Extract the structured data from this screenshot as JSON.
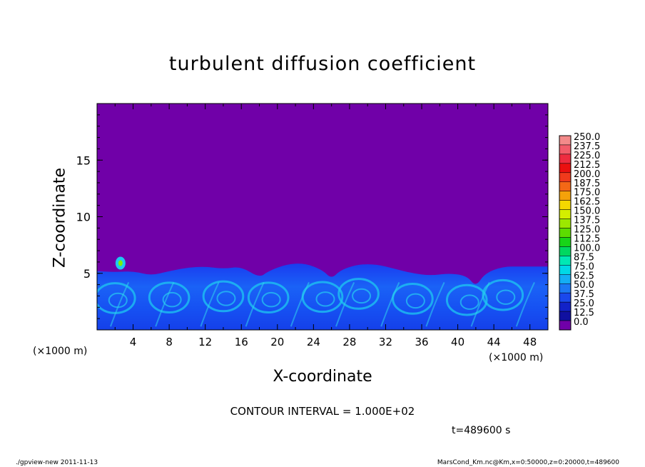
{
  "chart_data": {
    "type": "heatmap",
    "title": "turbulent diffusion coefficient",
    "xlabel": "X-coordinate",
    "ylabel": "Z-coordinate",
    "x_unit": "(×1000 m)",
    "y_unit": "(×1000 m)",
    "xlim": [
      0,
      50
    ],
    "ylim": [
      0,
      20
    ],
    "x_ticks": [
      "4",
      "8",
      "12",
      "16",
      "20",
      "24",
      "28",
      "32",
      "36",
      "40",
      "44",
      "48"
    ],
    "y_ticks": [
      "5",
      "10",
      "15"
    ],
    "colorbar": {
      "labels": [
        "250.0",
        "237.5",
        "225.0",
        "212.5",
        "200.0",
        "187.5",
        "175.0",
        "162.5",
        "150.0",
        "137.5",
        "125.0",
        "112.5",
        "100.0",
        "87.5",
        "75.0",
        "62.5",
        "50.0",
        "37.5",
        "25.0",
        "12.5",
        "0.0"
      ],
      "colors": [
        "#f38a8a",
        "#f25c6a",
        "#ee2c40",
        "#ea1010",
        "#f03a1c",
        "#f46816",
        "#f5a20a",
        "#f4d800",
        "#d4ee00",
        "#9ce800",
        "#5cdc00",
        "#18d418",
        "#00d860",
        "#00e8b4",
        "#00d8e6",
        "#14aef4",
        "#1c78f4",
        "#1a48ec",
        "#1222c8",
        "#1010a0",
        "#7000a8"
      ]
    },
    "boundary_layer_top": [
      {
        "x": 0,
        "z": 5.2
      },
      {
        "x": 2,
        "z": 5.1
      },
      {
        "x": 4,
        "z": 5.2
      },
      {
        "x": 6,
        "z": 4.8
      },
      {
        "x": 8,
        "z": 5.2
      },
      {
        "x": 10,
        "z": 5.5
      },
      {
        "x": 12,
        "z": 5.6
      },
      {
        "x": 14,
        "z": 5.4
      },
      {
        "x": 16,
        "z": 5.6
      },
      {
        "x": 18,
        "z": 4.6
      },
      {
        "x": 19,
        "z": 5.2
      },
      {
        "x": 21,
        "z": 5.8
      },
      {
        "x": 23,
        "z": 5.9
      },
      {
        "x": 25,
        "z": 5.3
      },
      {
        "x": 26,
        "z": 4.5
      },
      {
        "x": 27,
        "z": 5.3
      },
      {
        "x": 29,
        "z": 5.8
      },
      {
        "x": 31,
        "z": 5.8
      },
      {
        "x": 33,
        "z": 5.4
      },
      {
        "x": 35,
        "z": 5.0
      },
      {
        "x": 37,
        "z": 4.8
      },
      {
        "x": 39,
        "z": 5.0
      },
      {
        "x": 41,
        "z": 4.8
      },
      {
        "x": 42,
        "z": 3.8
      },
      {
        "x": 43,
        "z": 5.0
      },
      {
        "x": 45,
        "z": 5.6
      },
      {
        "x": 47,
        "z": 5.6
      },
      {
        "x": 50,
        "z": 5.6
      }
    ],
    "peak_blob": {
      "x": 2.6,
      "z": 5.9,
      "value": 150
    }
  },
  "contour_interval": "CONTOUR INTERVAL = 1.000E+02",
  "time_label": "t=489600 s",
  "footer_left": "./gpview-new   2011-11-13",
  "footer_right": "MarsCond_Km.nc@Km,x=0:50000,z=0:20000,t=489600"
}
